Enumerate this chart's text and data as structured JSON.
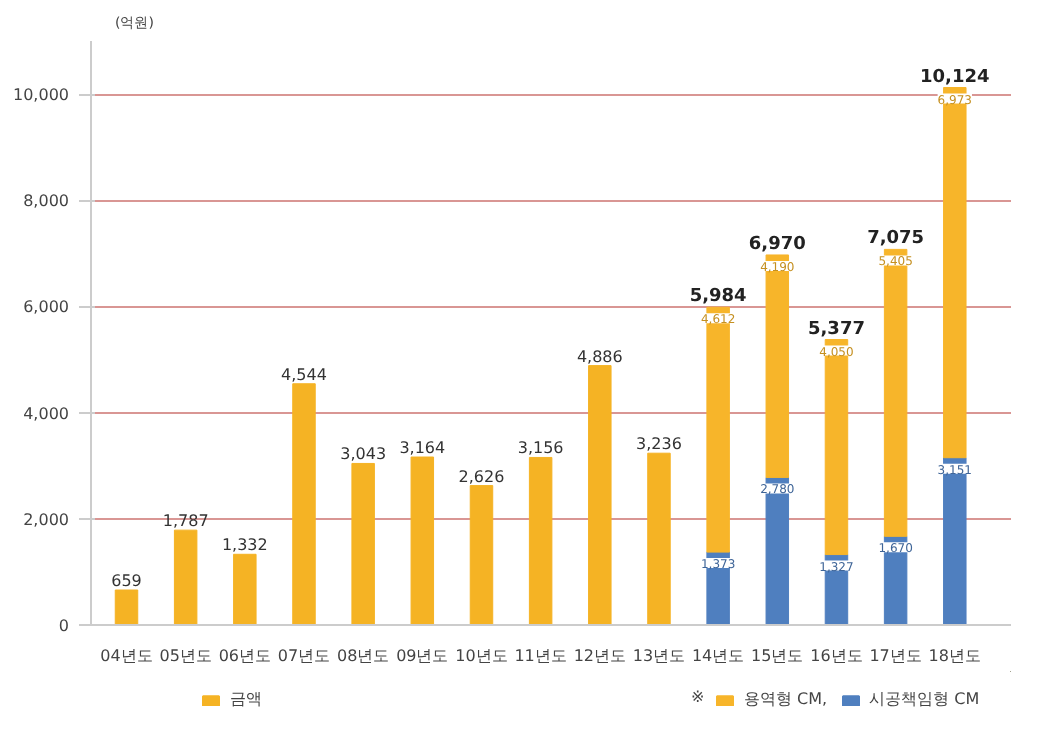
{
  "chart_data": {
    "type": "bar",
    "stacked": true,
    "ylabel": "(억원)",
    "categories": [
      "04년도",
      "05년도",
      "06년도",
      "07년도",
      "08년도",
      "09년도",
      "10년도",
      "11년도",
      "12년도",
      "13년도",
      "14년도",
      "15년도",
      "16년도",
      "17년도",
      "18년도"
    ],
    "series": [
      {
        "name": "시공책임형 CM",
        "color": "#4f7fbf",
        "values": [
          null,
          null,
          null,
          null,
          null,
          null,
          null,
          null,
          null,
          null,
          1373,
          2780,
          1327,
          1670,
          3151
        ],
        "value_labels": [
          null,
          null,
          null,
          null,
          null,
          null,
          null,
          null,
          null,
          null,
          "1,373",
          "2,780",
          "1,327",
          "1,670",
          "3,151"
        ]
      },
      {
        "name": "금액",
        "color": "#f5b324",
        "values": [
          659,
          1787,
          1332,
          4544,
          3043,
          3164,
          2626,
          3156,
          4886,
          3236,
          null,
          null,
          null,
          null,
          null
        ],
        "value_labels": [
          "659",
          "1,787",
          "1,332",
          "4,544",
          "3,043",
          "3,164",
          "2,626",
          "3,156",
          "4,886",
          "3,236",
          null,
          null,
          null,
          null,
          null
        ]
      },
      {
        "name": "용역형 CM,",
        "color": "#f7b52a",
        "values": [
          null,
          null,
          null,
          null,
          null,
          null,
          null,
          null,
          null,
          null,
          4612,
          4190,
          4050,
          5405,
          6973
        ],
        "value_labels": [
          null,
          null,
          null,
          null,
          null,
          null,
          null,
          null,
          null,
          null,
          "4,612",
          "4,190",
          "4,050",
          "5,405",
          "6,973"
        ]
      }
    ],
    "totals": [
      null,
      null,
      null,
      null,
      null,
      null,
      null,
      null,
      null,
      null,
      "5,984",
      "6,970",
      "5,377",
      "7,075",
      "10,124"
    ],
    "ylim": [
      0,
      11000
    ],
    "yticks": [
      0,
      {
        "value": 2000,
        "label": "2,000"
      },
      {
        "value": 4000,
        "label": "4,000"
      },
      {
        "value": 6000,
        "label": "6,000"
      },
      {
        "value": 8000,
        "label": "8,000"
      },
      {
        "value": 10000,
        "label": "10,000"
      }
    ],
    "grid": "y",
    "legend": "bottom",
    "annotations": [
      "※"
    ]
  }
}
